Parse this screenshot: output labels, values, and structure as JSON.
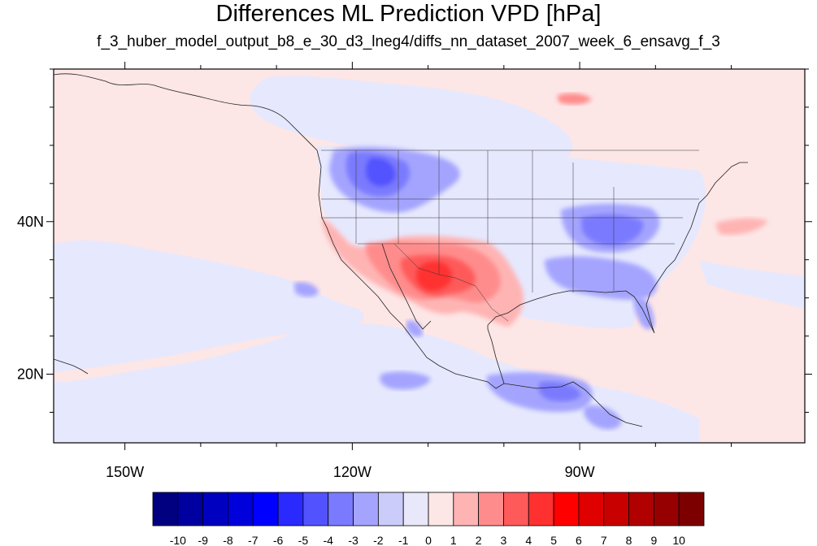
{
  "title": "Differences ML Prediction VPD [hPa]",
  "subtitle": "f_3_huber_model_output_b8_e_30_d3_lneg4/diffs_nn_dataset_2007_week_6_ensavg_f_3",
  "map": {
    "lon_ticks": [
      {
        "label": "150W",
        "lon": -150
      },
      {
        "label": "120W",
        "lon": -120
      },
      {
        "label": "90W",
        "lon": -90
      }
    ],
    "lat_ticks": [
      {
        "label": "40N",
        "lat": 40
      },
      {
        "label": "20N",
        "lat": 20
      }
    ],
    "lon_range": [
      -159.4,
      -60.3
    ],
    "lat_range": [
      11,
      60
    ],
    "background_color": "#fde6e6",
    "regions": [
      {
        "name": "pacific-near-zero-negative",
        "color": "#e6e8fd"
      },
      {
        "name": "northwest-negative",
        "color": "#7373ff"
      },
      {
        "name": "southwest-positive",
        "color": "#ff4444"
      },
      {
        "name": "southeast-negative",
        "color": "#8a8aff"
      },
      {
        "name": "central-america-negative",
        "color": "#7373ff"
      }
    ]
  },
  "colorbar": {
    "labels": [
      "-10",
      "-9",
      "-8",
      "-7",
      "-6",
      "-5",
      "-4",
      "-3",
      "-2",
      "-1",
      "0",
      "1",
      "2",
      "3",
      "4",
      "5",
      "6",
      "7",
      "8",
      "9",
      "10"
    ],
    "colors": [
      "#000080",
      "#0000a0",
      "#0000c0",
      "#0000dd",
      "#0000ff",
      "#2a2aff",
      "#5252ff",
      "#7a7aff",
      "#a4a4ff",
      "#ccccfb",
      "#e8e8fa",
      "#fde6e6",
      "#ffb4b4",
      "#ff8c8c",
      "#ff5a5a",
      "#ff3030",
      "#ff0000",
      "#e00000",
      "#c80000",
      "#b00000",
      "#960000",
      "#7d0000"
    ]
  }
}
